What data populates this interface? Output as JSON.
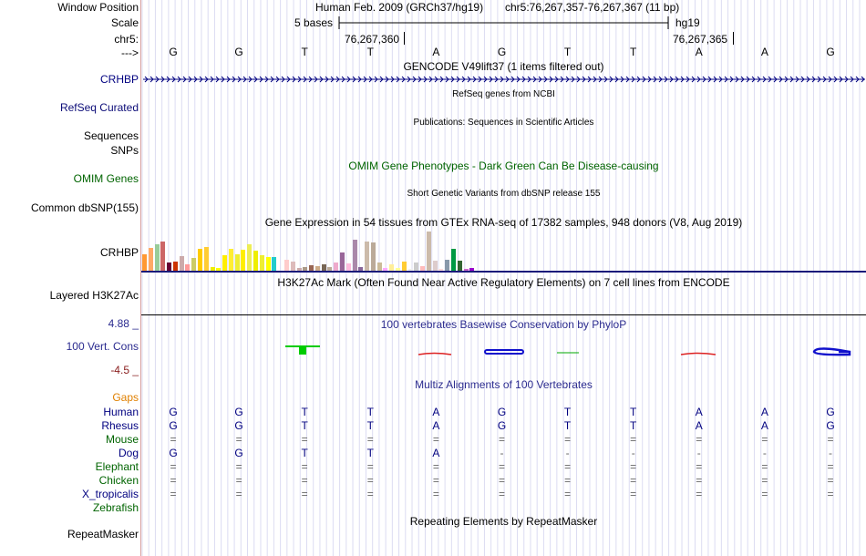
{
  "header": {
    "window_position_label": "Window Position",
    "assembly_text": "Human Feb. 2009 (GRCh37/hg19)",
    "position_text": "chr5:76,267,357-76,267,367 (11 bp)",
    "scale_label": "Scale",
    "scale_bases": "5 bases",
    "scale_db": "hg19",
    "chrom_label": "chr5:",
    "coord_1": "76,267,360",
    "coord_2": "76,267,365",
    "strand_label": "--->"
  },
  "bases": [
    "G",
    "G",
    "T",
    "T",
    "A",
    "G",
    "T",
    "T",
    "A",
    "A",
    "G"
  ],
  "tracks": {
    "gencode": {
      "label": "CRHBP",
      "title": "GENCODE V49lift37 (1 items filtered out)",
      "color": "#000080"
    },
    "refseq": {
      "label": "RefSeq Curated",
      "title": "RefSeq genes from NCBI",
      "color": "#0c0c78"
    },
    "publications": {
      "label": "Sequences",
      "title": "Publications: Sequences in Scientific Articles"
    },
    "snps_small": {
      "label": "SNPs"
    },
    "omim": {
      "label": "OMIM Genes",
      "title": "OMIM Gene Phenotypes - Dark Green Can Be Disease-causing",
      "color": "#006400"
    },
    "dbsnp": {
      "label": "Common dbSNP(155)",
      "title": "Short Genetic Variants from dbSNP release 155"
    },
    "gtex": {
      "label": "CRHBP",
      "title": "Gene Expression in 54 tissues from GTEx RNA-seq of 17382 samples, 948 donors (V8, Aug 2019)",
      "values": [
        19,
        26,
        30,
        33,
        10,
        11,
        17,
        8,
        15,
        25,
        27,
        5,
        4,
        18,
        25,
        19,
        24,
        30,
        23,
        18,
        16,
        16,
        0,
        13,
        11,
        4,
        5,
        7,
        6,
        8,
        5,
        10,
        21,
        9,
        35,
        5,
        33,
        32,
        10,
        4,
        8,
        4,
        11,
        3,
        10,
        6,
        44,
        12,
        3,
        13,
        25,
        12,
        3,
        4
      ],
      "colors": [
        "#ff9933",
        "#ffaa66",
        "#99cc99",
        "#cc6666",
        "#660033",
        "#cc3300",
        "#ccaaaa",
        "#ff9999",
        "#cccc66",
        "#ffcc00",
        "#ffcc33",
        "#eeee00",
        "#ffff00",
        "#ffee00",
        "#ffee33",
        "#eeee33",
        "#ffee00",
        "#eeee55",
        "#eeee00",
        "#eeee33",
        "#ffff00",
        "#22cccc",
        "#ffffff",
        "#ffcccc",
        "#ddbbbb",
        "#ccaaaa",
        "#aa9988",
        "#996655",
        "#ccaa88",
        "#776655",
        "#bbaa99",
        "#eeaacc",
        "#996699",
        "#ffbbdd",
        "#aa88aa",
        "#886699",
        "#ccbbaa",
        "#bbaa99",
        "#ccbb99",
        "#ffaaff",
        "#ffee99",
        "#ffff99",
        "#ffcc33",
        "#eeeeee",
        "#cccccc",
        "#ffbbbb",
        "#ccbbaa",
        "#ddcccc",
        "#ffdddd",
        "#8899aa",
        "#009944",
        "#336633",
        "#cc66cc",
        "#9900cc"
      ]
    },
    "h3k27ac": {
      "label": "Layered H3K27Ac",
      "title": "H3K27Ac Mark (Often Found Near Active Regulatory Elements) on 7 cell lines from ENCODE"
    },
    "cons": {
      "label": "100 Vert. Cons",
      "max": "4.88 _",
      "min": "-4.5 _",
      "title": "100 vertebrates Basewise Conservation by PhyloP",
      "color": "#2b2b8f"
    },
    "multiz": {
      "title": "Multiz Alignments of 100 Vertebrates",
      "gaps_label": "Gaps",
      "species": [
        {
          "name": "Human",
          "color": "#000080",
          "row": [
            "G",
            "G",
            "T",
            "T",
            "A",
            "G",
            "T",
            "T",
            "A",
            "A",
            "G"
          ]
        },
        {
          "name": "Rhesus",
          "color": "#000080",
          "row": [
            "G",
            "G",
            "T",
            "T",
            "A",
            "G",
            "T",
            "T",
            "A",
            "A",
            "G"
          ]
        },
        {
          "name": "Mouse",
          "color": "#006400",
          "row": [
            "=",
            "=",
            "=",
            "=",
            "=",
            "=",
            "=",
            "=",
            "=",
            "=",
            "="
          ]
        },
        {
          "name": "Dog",
          "color": "#000080",
          "row": [
            "G",
            "G",
            "T",
            "T",
            "A",
            "-",
            "-",
            "-",
            "-",
            "-",
            "-"
          ]
        },
        {
          "name": "Elephant",
          "color": "#006400",
          "row": [
            "=",
            "=",
            "=",
            "=",
            "=",
            "=",
            "=",
            "=",
            "=",
            "=",
            "="
          ]
        },
        {
          "name": "Chicken",
          "color": "#006400",
          "row": [
            "=",
            "=",
            "=",
            "=",
            "=",
            "=",
            "=",
            "=",
            "=",
            "=",
            "="
          ]
        },
        {
          "name": "X_tropicalis",
          "color": "#000080",
          "row": [
            "=",
            "=",
            "=",
            "=",
            "=",
            "=",
            "=",
            "=",
            "=",
            "=",
            "="
          ]
        },
        {
          "name": "Zebrafish",
          "color": "#006400",
          "row": [
            "",
            "",
            "",
            "",
            "",
            "",
            "",
            "",
            "",
            "",
            ""
          ]
        }
      ]
    },
    "repeatmasker": {
      "label": "RepeatMasker",
      "title": "Repeating Elements by RepeatMasker"
    }
  }
}
